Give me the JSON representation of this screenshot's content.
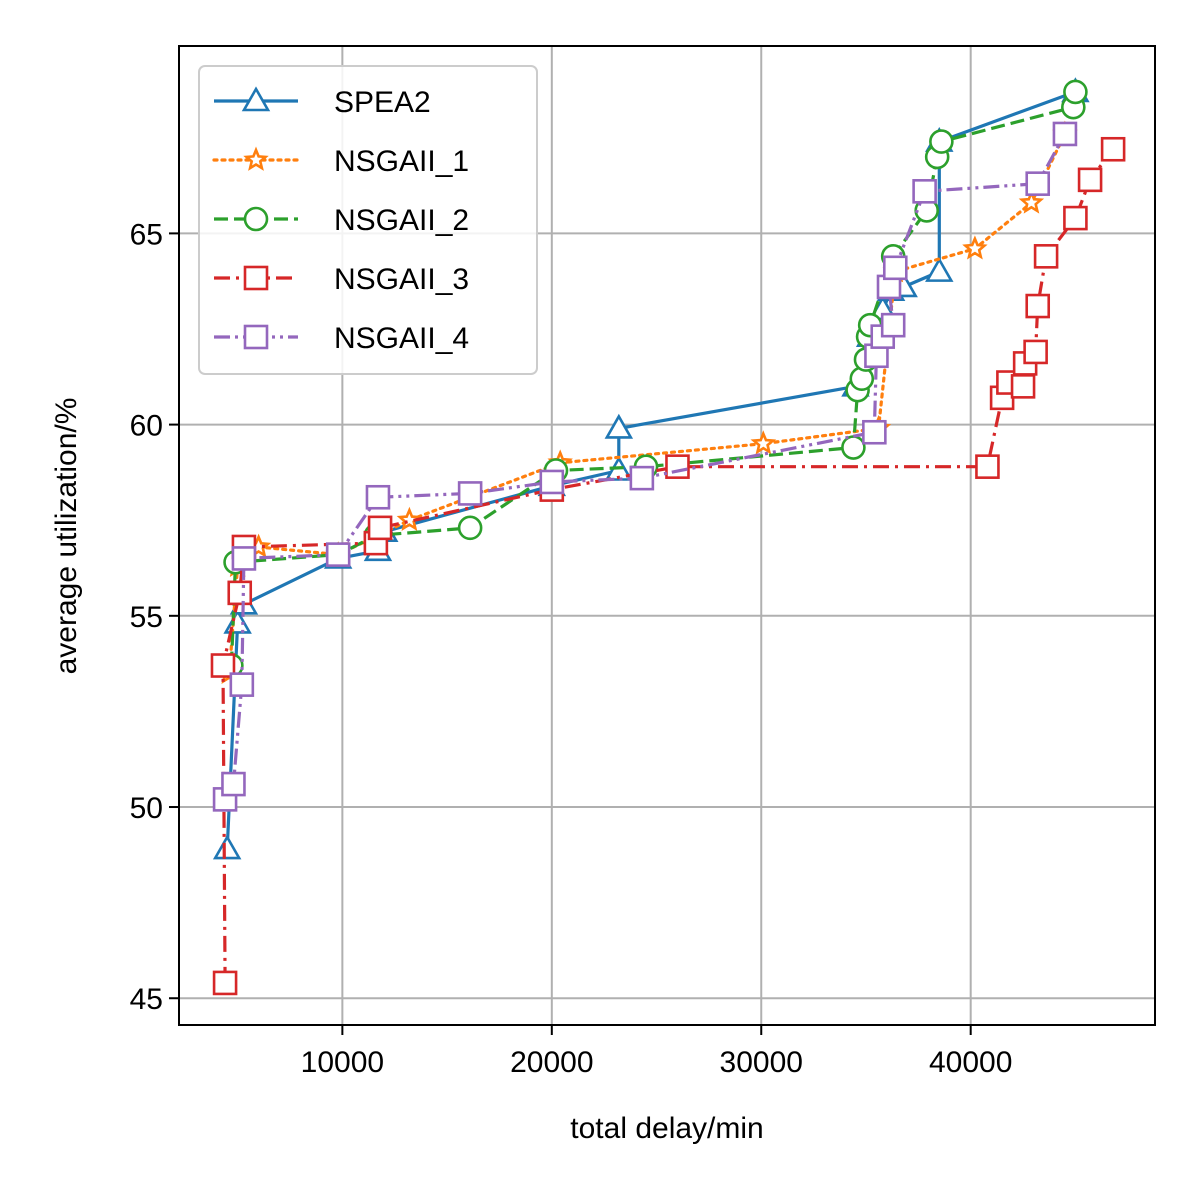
{
  "chart_data": {
    "type": "line",
    "title": "",
    "xlabel": "total delay/min",
    "ylabel": "average utilization/%",
    "xlim": [
      2200,
      48800
    ],
    "ylim": [
      44.3,
      69.9
    ],
    "xticks": [
      10000,
      20000,
      30000,
      40000
    ],
    "yticks": [
      45,
      50,
      55,
      60,
      65
    ],
    "grid": true,
    "legend_position": "top-left",
    "series": [
      {
        "name": "SPEA2",
        "color": "#1f77b4",
        "dash": "solid",
        "marker": "triangle",
        "points": [
          [
            4500,
            48.9
          ],
          [
            5000,
            54.8
          ],
          [
            5300,
            55.3
          ],
          [
            9800,
            56.5
          ],
          [
            11700,
            56.7
          ],
          [
            12000,
            57.2
          ],
          [
            20000,
            58.4
          ],
          [
            23200,
            58.8
          ],
          [
            23200,
            59.9
          ],
          [
            34500,
            61.0
          ],
          [
            35200,
            62.3
          ],
          [
            35800,
            63.0
          ],
          [
            36200,
            63.5
          ],
          [
            36800,
            63.6
          ],
          [
            38500,
            64.0
          ],
          [
            38500,
            67.4
          ],
          [
            45000,
            68.7
          ]
        ]
      },
      {
        "name": "NSGAII_1",
        "color": "#ff7f0e",
        "dash": "dotted",
        "marker": "star",
        "points": [
          [
            4600,
            53.5
          ],
          [
            5000,
            56.3
          ],
          [
            6000,
            56.8
          ],
          [
            9800,
            56.6
          ],
          [
            13200,
            57.5
          ],
          [
            20400,
            59.0
          ],
          [
            30100,
            59.5
          ],
          [
            35600,
            59.9
          ],
          [
            36400,
            64.0
          ],
          [
            40200,
            64.6
          ],
          [
            42900,
            65.8
          ],
          [
            44500,
            67.6
          ]
        ]
      },
      {
        "name": "NSGAII_2",
        "color": "#2ca02c",
        "dash": "dashed",
        "marker": "circle",
        "points": [
          [
            4700,
            53.7
          ],
          [
            4900,
            56.4
          ],
          [
            9800,
            56.6
          ],
          [
            11600,
            57.1
          ],
          [
            16100,
            57.3
          ],
          [
            20200,
            58.8
          ],
          [
            24500,
            58.9
          ],
          [
            34400,
            59.4
          ],
          [
            34600,
            60.9
          ],
          [
            34800,
            61.2
          ],
          [
            35000,
            61.7
          ],
          [
            35100,
            62.3
          ],
          [
            35200,
            62.6
          ],
          [
            36300,
            64.4
          ],
          [
            37900,
            65.6
          ],
          [
            38400,
            67.0
          ],
          [
            38600,
            67.4
          ],
          [
            44900,
            68.3
          ],
          [
            45000,
            68.7
          ]
        ]
      },
      {
        "name": "NSGAII_3",
        "color": "#d62728",
        "dash": "dashdot",
        "marker": "square",
        "points": [
          [
            4400,
            45.4
          ],
          [
            4300,
            53.7
          ],
          [
            5100,
            55.6
          ],
          [
            5300,
            56.8
          ],
          [
            11600,
            56.9
          ],
          [
            11800,
            57.3
          ],
          [
            20000,
            58.3
          ],
          [
            26000,
            58.9
          ],
          [
            40800,
            58.9
          ],
          [
            41500,
            60.7
          ],
          [
            41800,
            61.1
          ],
          [
            42500,
            61.0
          ],
          [
            42600,
            61.6
          ],
          [
            43100,
            61.9
          ],
          [
            43200,
            63.1
          ],
          [
            43600,
            64.4
          ],
          [
            45000,
            65.4
          ],
          [
            45700,
            66.4
          ],
          [
            46800,
            67.2
          ]
        ]
      },
      {
        "name": "NSGAII_4",
        "color": "#9467bd",
        "dash": "dashdotdot",
        "marker": "square",
        "points": [
          [
            4400,
            50.2
          ],
          [
            4800,
            50.6
          ],
          [
            5200,
            53.2
          ],
          [
            5300,
            56.5
          ],
          [
            9800,
            56.6
          ],
          [
            11700,
            58.1
          ],
          [
            16100,
            58.2
          ],
          [
            20000,
            58.5
          ],
          [
            24300,
            58.6
          ],
          [
            35400,
            59.8
          ],
          [
            35500,
            61.8
          ],
          [
            35800,
            62.3
          ],
          [
            36300,
            62.6
          ],
          [
            36100,
            63.6
          ],
          [
            36400,
            64.1
          ],
          [
            37800,
            66.1
          ],
          [
            43200,
            66.3
          ],
          [
            44500,
            67.6
          ]
        ]
      }
    ]
  }
}
